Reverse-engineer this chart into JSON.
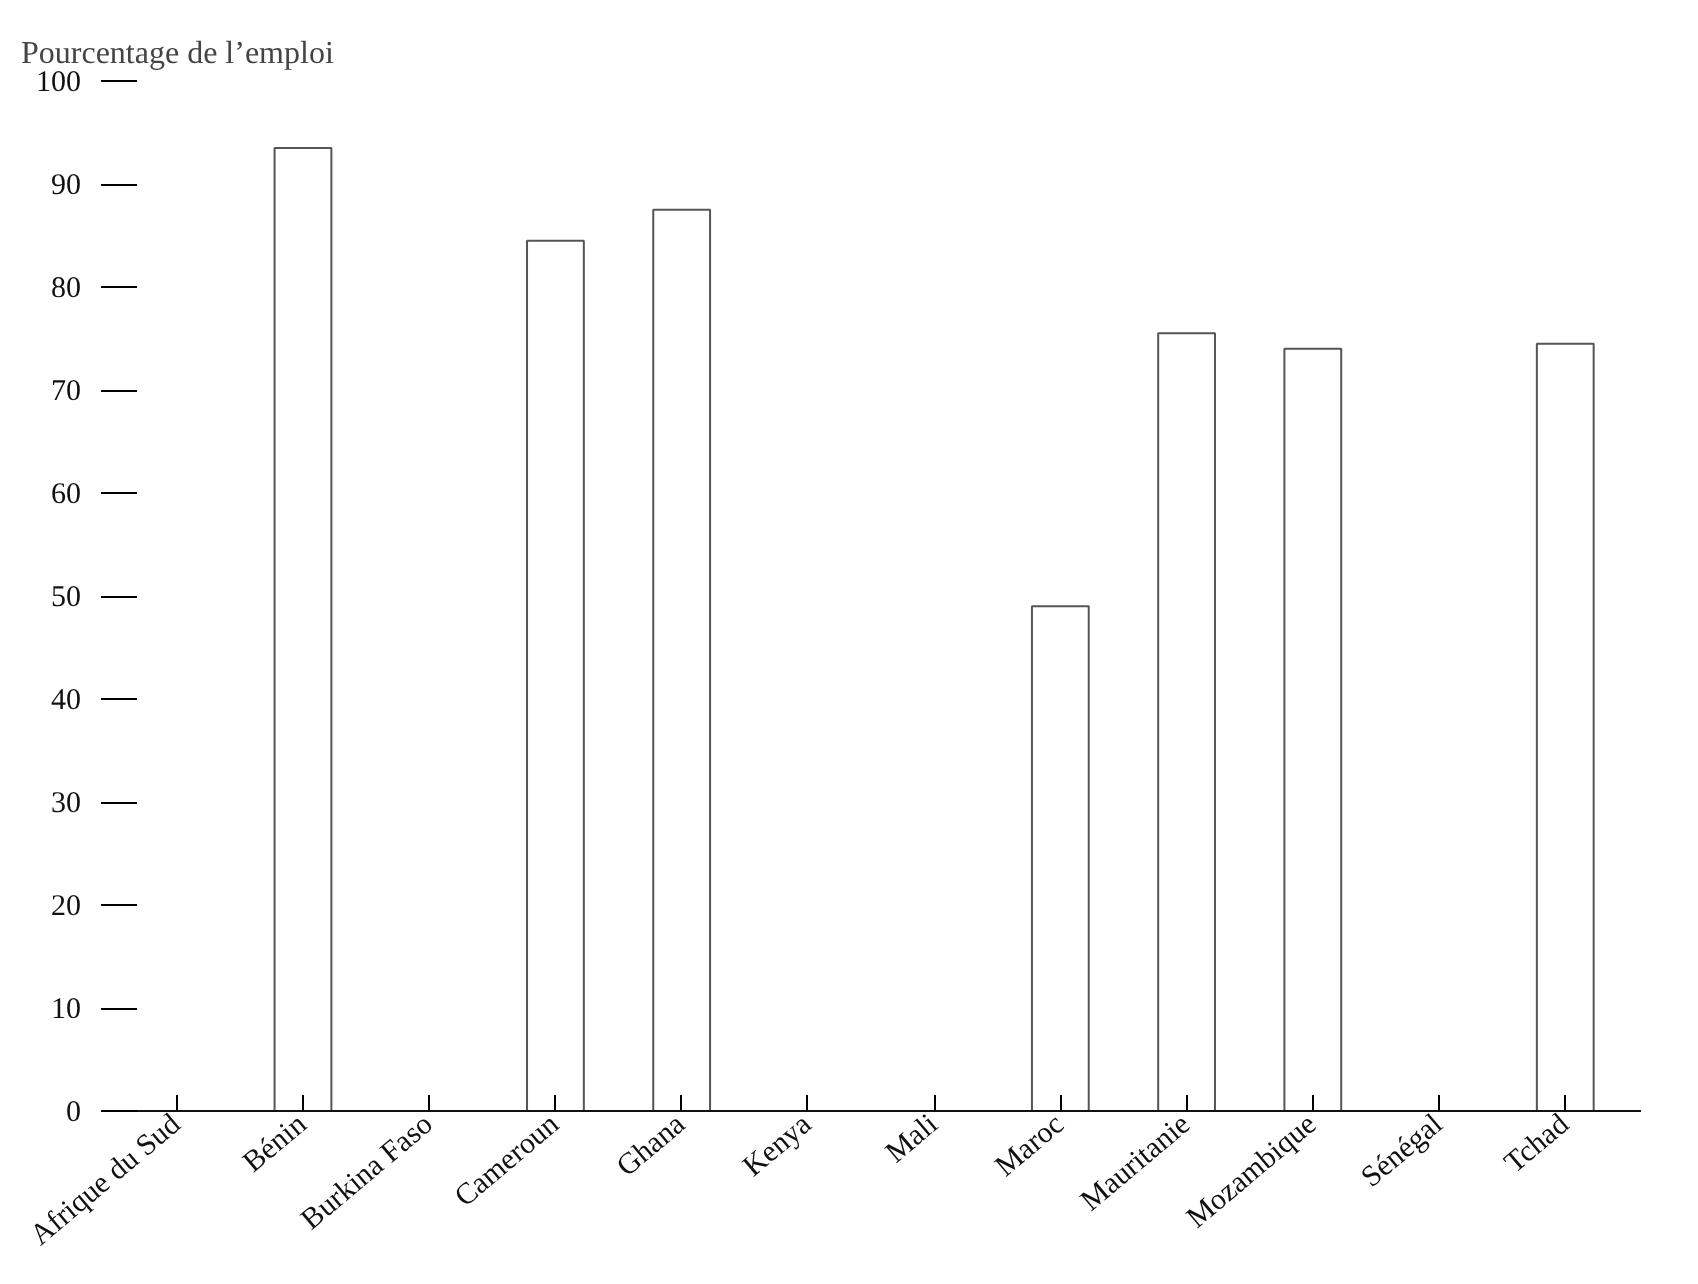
{
  "chart_data": {
    "type": "bar",
    "ylabel": "Pourcentage de l’emploi",
    "categories": [
      "Afrique du Sud",
      "Bénin",
      "Burkina Faso",
      "Cameroun",
      "Ghana",
      "Kenya",
      "Mali",
      "Maroc",
      "Mauritanie",
      "Mozambique",
      "Sénégal",
      "Tchad"
    ],
    "values": [
      null,
      93.5,
      null,
      84.5,
      87.5,
      null,
      null,
      49,
      75.5,
      74,
      null,
      74.5
    ],
    "color": "#ffffff",
    "ylim": [
      0,
      100
    ],
    "yticks": [
      0,
      10,
      20,
      30,
      40,
      50,
      60,
      70,
      80,
      90,
      100
    ],
    "grid": false
  }
}
